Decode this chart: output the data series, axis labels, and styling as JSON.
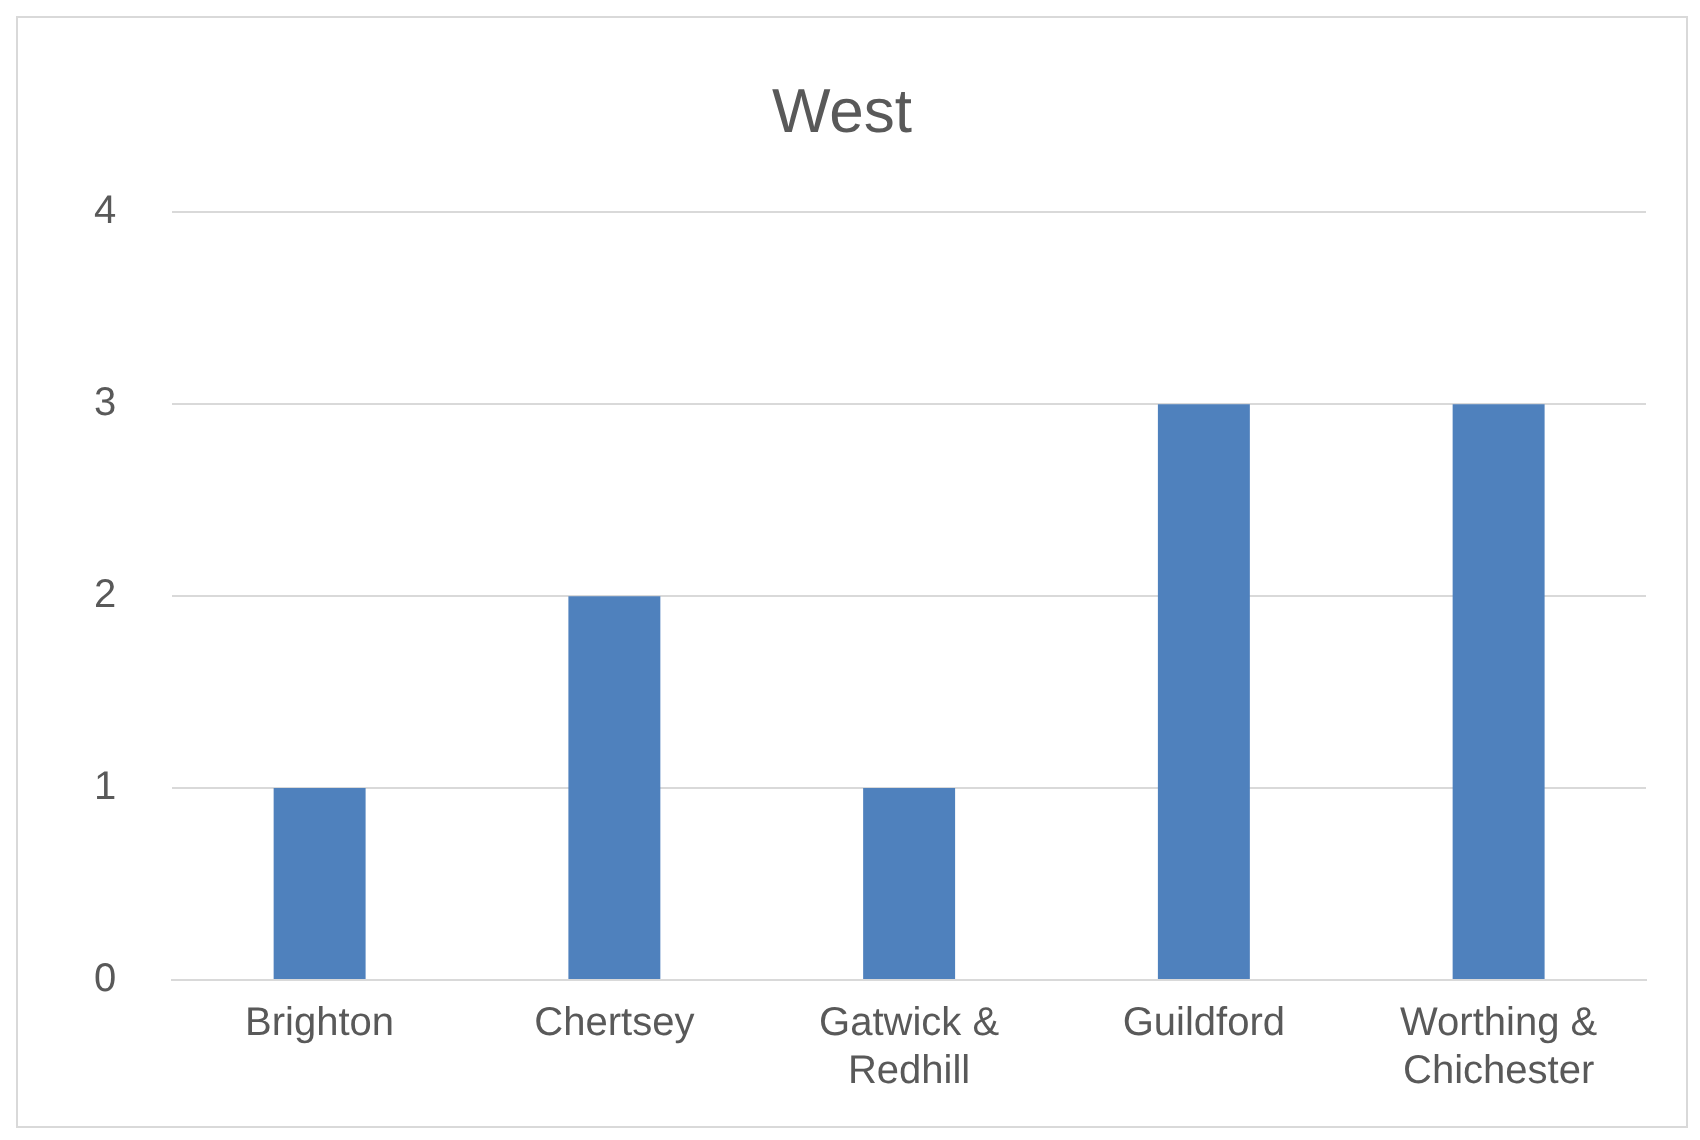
{
  "chart_data": {
    "type": "bar",
    "title": "West",
    "categories": [
      "Brighton",
      "Chertsey",
      "Gatwick & Redhill",
      "Guildford",
      "Worthing & Chichester"
    ],
    "values": [
      1,
      2,
      1,
      3,
      3
    ],
    "color": "#4f81bd",
    "ylim": [
      0,
      4
    ],
    "yticks": [
      0,
      1,
      2,
      3,
      4
    ],
    "grid": "y"
  }
}
